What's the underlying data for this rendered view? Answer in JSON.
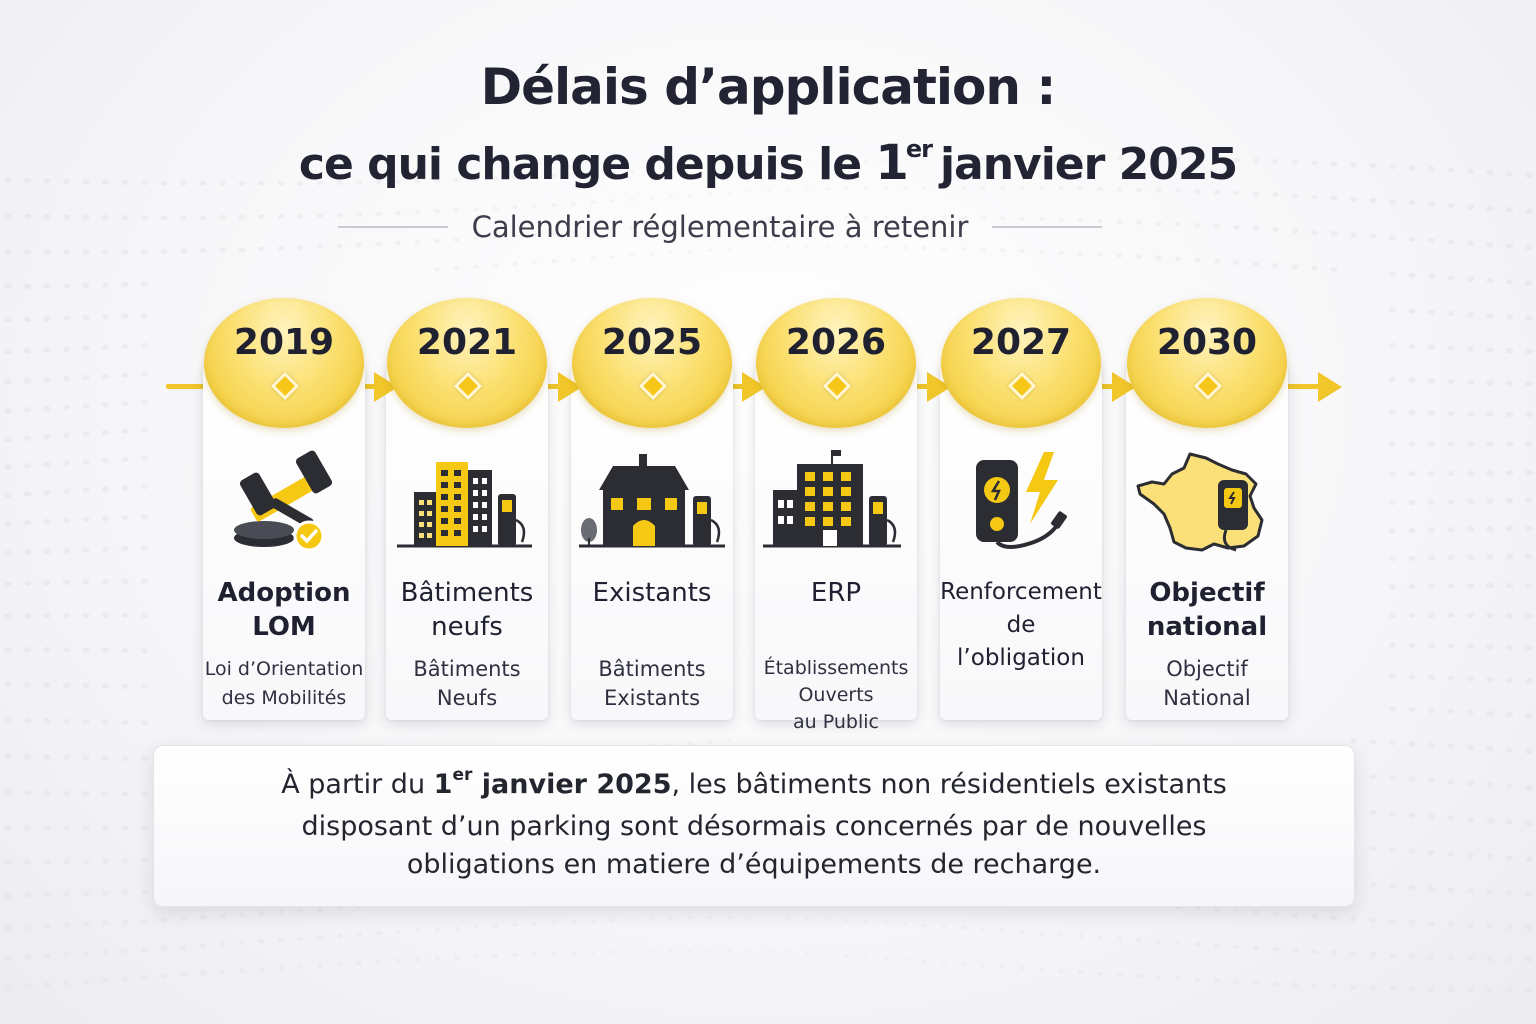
{
  "title": {
    "line1": "Délais d’application :",
    "line2_prefix": "ce qui change depuis le",
    "line2_day": "1",
    "line2_sup": "er",
    "line2_suffix": "janvier 2025"
  },
  "subtitle": "Calendrier réglementaire à retenir",
  "colors": {
    "accent_yellow": "#f1c62a",
    "dark_text": "#1f2130",
    "icon_dark": "#2b2d33"
  },
  "timeline": [
    {
      "year": "2019",
      "icon": "gavel-check-icon",
      "label_lines": [
        "Adoption",
        "LOM"
      ],
      "desc_lines": [
        "Loi d’Orientation",
        "des Mobilités"
      ]
    },
    {
      "year": "2021",
      "icon": "new-buildings-charger-icon",
      "label_lines": [
        "Bâtiments",
        "neufs"
      ],
      "desc_lines": [
        "Bâtiments",
        "Neufs"
      ]
    },
    {
      "year": "2025",
      "icon": "existing-house-charger-icon",
      "label_lines": [
        "Existants"
      ],
      "desc_lines": [
        "Bâtiments",
        "Existants"
      ]
    },
    {
      "year": "2026",
      "icon": "public-building-charger-icon",
      "label_lines": [
        "ERP"
      ],
      "desc_lines": [
        "Établissements",
        "Ouverts",
        "au Public"
      ]
    },
    {
      "year": "2027",
      "icon": "charger-lightning-icon",
      "label_lines": [
        "Renforcement",
        "de",
        "l’obligation"
      ],
      "desc_lines": []
    },
    {
      "year": "2030",
      "icon": "france-map-charger-icon",
      "label_lines": [
        "Objectif",
        "national"
      ],
      "desc_lines": [
        "Objectif",
        "National"
      ]
    }
  ],
  "info": {
    "line1_prefix": "À partir du",
    "line1_bold_day": "1",
    "line1_bold_sup": "er",
    "line1_bold_rest": "janvier 2025",
    "line1_suffix": ", les bâtiments non résidentiels existants",
    "line2": "disposant d’un parking sont désormais concernés par de nouvelles",
    "line3": "obligations en matiere d’équipements de recharge."
  }
}
